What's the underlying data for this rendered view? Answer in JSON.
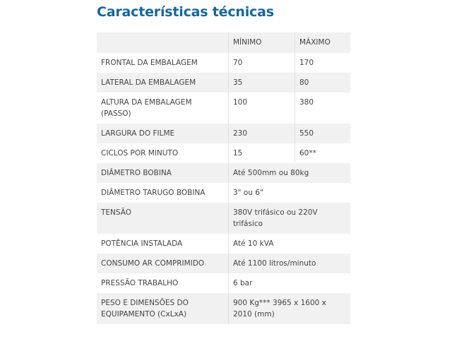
{
  "title": "Características técnicas",
  "table": {
    "headers": [
      "",
      "MÍNIMO",
      "MÁXIMO"
    ],
    "rows": [
      {
        "label": "FRONTAL DA EMBALAGEM",
        "min": "70",
        "max": "170"
      },
      {
        "label": "LATERAL DA EMBALAGEM",
        "min": "35",
        "max": "80"
      },
      {
        "label": "ALTURA DA EMBALAGEM (PASSO)",
        "min": "100",
        "max": "380"
      },
      {
        "label": "LARGURA DO FILME",
        "min": "230",
        "max": "550"
      },
      {
        "label": "CICLOS POR MINUTO",
        "min": "15",
        "max": "60**"
      },
      {
        "label": "DIÂMETRO BOBINA",
        "value": "Até 500mm ou 80kg"
      },
      {
        "label": "DIÂMETRO TARUGO BOBINA",
        "value": "3\" ou 6\""
      },
      {
        "label": "TENSÃO",
        "value": "380V trifásico ou 220V trifásico"
      },
      {
        "label": "POTÊNCIA INSTALADA",
        "value": "Até 10 kVA"
      },
      {
        "label": "CONSUMO AR COMPRIMIDO",
        "value": "Até 1100 litros/minuto"
      },
      {
        "label": "PRESSÃO TRABALHO",
        "value": "6 bar"
      },
      {
        "label": "PESO E DIMENSÕES DO EQUIPAMENTO (CxLxA)",
        "value": "900 Kg***  3965 x 1600 x 2010 (mm)"
      }
    ]
  }
}
